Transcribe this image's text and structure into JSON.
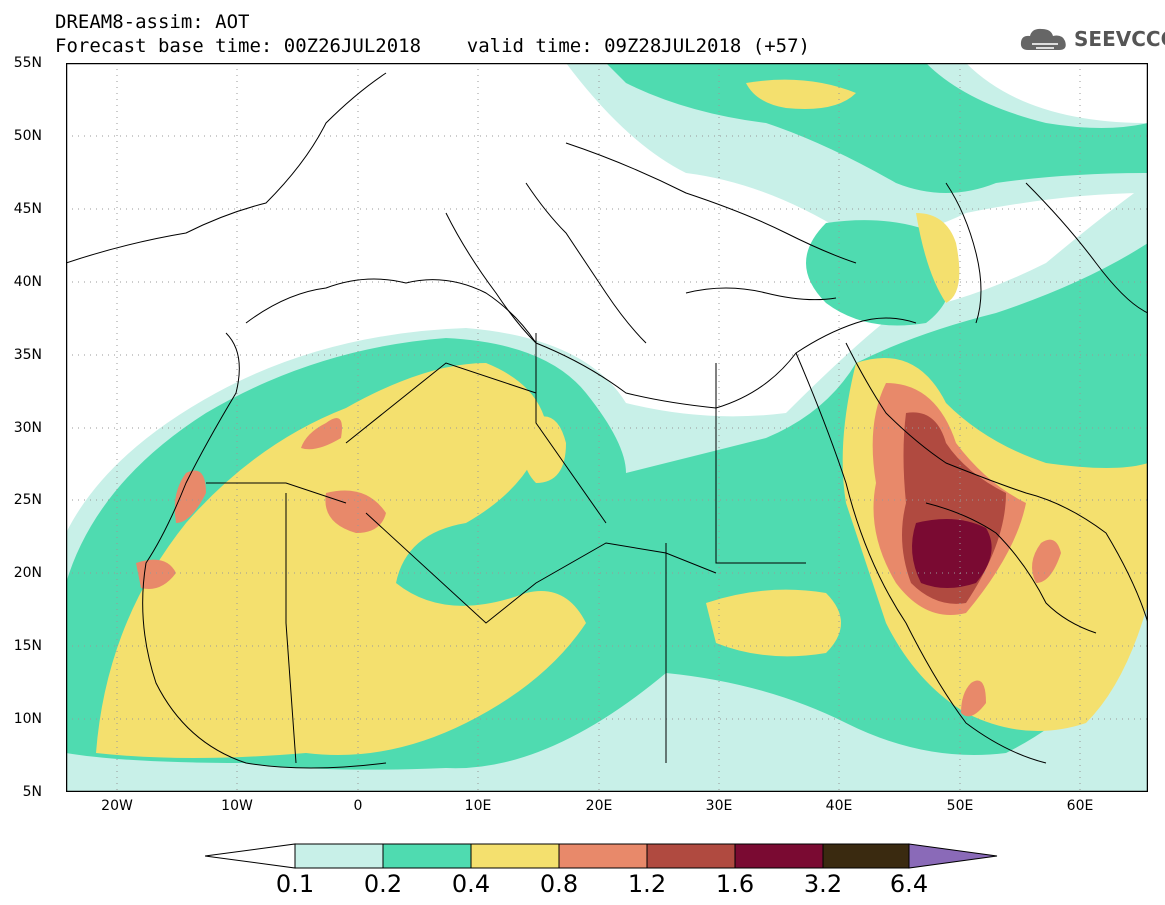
{
  "header": {
    "line1": "DREAM8-assim: AOT",
    "line2": "Forecast base time: 00Z26JUL2018    valid time: 09Z28JUL2018 (+57)"
  },
  "brand": {
    "name": "SEEVCCC",
    "icon": "cloud-logo-icon"
  },
  "map": {
    "lat_labels": [
      "55N",
      "50N",
      "45N",
      "40N",
      "35N",
      "30N",
      "25N",
      "20N",
      "15N",
      "10N",
      "5N"
    ],
    "lon_labels": [
      "20W",
      "10W",
      "0",
      "10E",
      "20E",
      "30E",
      "40E",
      "50E",
      "60E"
    ],
    "lon_range": [
      -25,
      65
    ],
    "lat_range": [
      5,
      55
    ]
  },
  "colorbar": {
    "labels": [
      "0.1",
      "0.2",
      "0.4",
      "0.8",
      "1.2",
      "1.6",
      "3.2",
      "6.4"
    ],
    "colors": [
      "#c8f0e8",
      "#4fdbb0",
      "#f4e06e",
      "#e8896a",
      "#b04a40",
      "#7a0a32",
      "#3a2a10",
      "#8a6ab8"
    ]
  }
}
